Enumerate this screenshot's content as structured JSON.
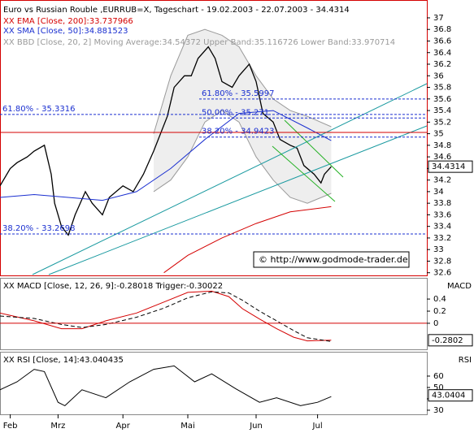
{
  "chart_data": [
    {
      "type": "line",
      "title": "Euro vs Russian Rouble ,EURRUB=X, Tageschart - 19.02.2003 - 22.07.2003 - 34.4314",
      "xlim": [
        0,
        125
      ],
      "ylim": [
        32.54,
        37.28
      ],
      "yticks": [
        32.6,
        32.8,
        33,
        33.2,
        33.4,
        33.6,
        33.8,
        34,
        34.2,
        34.4,
        34.6,
        34.8,
        35,
        35.2,
        35.4,
        35.6,
        35.8,
        36,
        36.2,
        36.4,
        36.6,
        36.8,
        37
      ],
      "last_value": 34.4314,
      "source": "© http://www.godmode-trader.de",
      "series": [
        {
          "color": "#000000",
          "x": [
            0,
            3,
            5,
            8,
            10,
            13,
            15,
            16,
            18,
            20,
            22,
            25,
            27,
            30,
            32,
            36,
            39,
            42,
            45,
            49,
            51,
            54,
            56,
            58,
            61,
            63,
            65,
            68,
            70,
            73,
            75,
            77,
            80,
            82,
            85,
            87,
            89,
            92,
            94,
            95,
            97
          ],
          "values": [
            34.1,
            34.4,
            34.5,
            34.6,
            34.7,
            34.8,
            34.3,
            33.8,
            33.4,
            33.25,
            33.6,
            34.0,
            33.8,
            33.6,
            33.9,
            34.1,
            34.0,
            34.3,
            34.7,
            35.3,
            35.8,
            36.0,
            36.0,
            36.3,
            36.5,
            36.3,
            35.9,
            35.8,
            36.0,
            36.2,
            35.9,
            35.35,
            35.2,
            34.9,
            34.8,
            34.75,
            34.45,
            34.3,
            34.15,
            34.3,
            34.43
          ]
        },
        {
          "name": "XX EMA [Close, 200]:33.737966",
          "color": "#d40000",
          "x": [
            48,
            55,
            65,
            75,
            85,
            97
          ],
          "values": [
            32.6,
            32.9,
            33.2,
            33.45,
            33.65,
            33.74
          ]
        },
        {
          "name": "XX SMA [Close, 50]:34.881523",
          "color": "#1a2fd0",
          "x": [
            0,
            10,
            20,
            30,
            40,
            50,
            60,
            70,
            80,
            90,
            97
          ],
          "values": [
            33.9,
            33.95,
            33.9,
            33.85,
            34.0,
            34.4,
            34.9,
            35.35,
            35.4,
            35.1,
            34.88
          ]
        }
      ],
      "bands": {
        "name": "XX BBD [Close, 20, 2] Moving Average:34.54372 Upper Band:35.116726 Lower Band:33.970714",
        "color": "#9a9a9a",
        "x": [
          45,
          50,
          55,
          60,
          65,
          70,
          75,
          80,
          85,
          90,
          97
        ],
        "upper": [
          35.0,
          36.0,
          36.7,
          36.8,
          36.7,
          36.5,
          36.0,
          35.6,
          35.4,
          35.3,
          35.12
        ],
        "lower": [
          34.0,
          34.2,
          34.6,
          35.2,
          35.4,
          35.2,
          34.6,
          34.2,
          33.9,
          33.8,
          33.97
        ]
      },
      "annotations": [
        {
          "label": "61.80% - 35.3316",
          "value": 35.3316
        },
        {
          "label": "38.20% - 33.2698",
          "value": 33.2698
        },
        {
          "label": "61.80% - 35.5997",
          "value": 35.5997
        },
        {
          "label": "50.00% - 35.271",
          "value": 35.271
        },
        {
          "label": "38.20% - 34.9423",
          "value": 34.9423
        }
      ]
    },
    {
      "type": "line",
      "title": "XX MACD [Close, 12, 26, 9]:-0.28018 Trigger:-0.30022",
      "axis_label": "MACD",
      "xlim": [
        0,
        125
      ],
      "ylim": [
        -0.43,
        0.75
      ],
      "yticks": [
        0,
        0.2,
        0.4
      ],
      "last_value": -0.2802,
      "series": [
        {
          "color": "#d40000",
          "x": [
            0,
            10,
            18,
            24,
            31,
            40,
            48,
            55,
            62,
            67,
            71,
            76,
            81,
            86,
            90,
            97
          ],
          "values": [
            0.17,
            0.04,
            -0.09,
            -0.09,
            0.04,
            0.17,
            0.35,
            0.51,
            0.53,
            0.44,
            0.24,
            0.07,
            -0.09,
            -0.23,
            -0.29,
            -0.28
          ]
        },
        {
          "color": "#000000",
          "x": [
            0,
            10,
            18,
            24,
            31,
            40,
            48,
            55,
            62,
            67,
            71,
            76,
            81,
            86,
            90,
            97
          ],
          "values": [
            0.12,
            0.08,
            -0.02,
            -0.07,
            -0.02,
            0.1,
            0.25,
            0.42,
            0.52,
            0.5,
            0.38,
            0.2,
            0.04,
            -0.12,
            -0.24,
            -0.3
          ]
        }
      ]
    },
    {
      "type": "line",
      "title": "XX RSI [Close, 14]:43.040435",
      "axis_label": "RSI",
      "xlim": [
        0,
        125
      ],
      "ylim": [
        26.4,
        81.4
      ],
      "yticks": [
        30,
        40,
        50,
        60
      ],
      "last_value": 43.0404,
      "xticks": [
        {
          "value": 3,
          "label": "Feb"
        },
        {
          "value": 17,
          "label": "Mrz"
        },
        {
          "value": 36,
          "label": "Apr"
        },
        {
          "value": 55,
          "label": "Mai"
        },
        {
          "value": 75,
          "label": "Jun"
        },
        {
          "value": 93,
          "label": "Jul"
        }
      ],
      "series": [
        {
          "color": "#000000",
          "x": [
            0,
            5,
            10,
            13,
            17,
            19,
            24,
            31,
            38,
            45,
            51,
            57,
            62,
            69,
            76,
            81,
            88,
            93,
            97
          ],
          "values": [
            48,
            55,
            66,
            64,
            37,
            34,
            48,
            41,
            55,
            66,
            69,
            55,
            62,
            49,
            37,
            41,
            34,
            37,
            42
          ]
        }
      ]
    }
  ]
}
